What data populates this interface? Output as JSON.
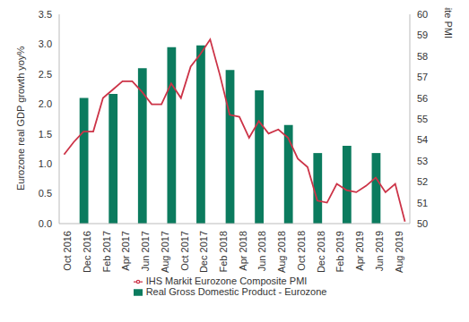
{
  "chart_data": {
    "type": "bar",
    "grid": false,
    "legend": "bottom",
    "y_label": "Eurozone real GDP growth yoy%",
    "y2_label": "IHS Markit Eurozone Composite PMI",
    "categories": [
      "Oct 2016",
      null,
      "Dec 2016",
      null,
      "Feb 2017",
      null,
      "Apr 2017",
      null,
      "Jun 2017",
      null,
      "Aug 2017",
      null,
      "Oct 2017",
      null,
      "Dec 2017",
      null,
      "Feb 2018",
      null,
      "Apr 2018",
      null,
      "Jun 2018",
      null,
      "Aug 2018",
      null,
      "Oct 2018",
      null,
      "Dec 2018",
      null,
      "Feb 2019",
      null,
      "Apr 2019",
      null,
      "Jun 2019",
      null,
      "Aug 2019",
      null
    ],
    "ylim": [
      0,
      3.5
    ],
    "yticks": [
      {
        "value": 0,
        "label": "0.0"
      },
      0.5,
      {
        "value": 1,
        "label": "1.0"
      },
      1.5,
      {
        "value": 2,
        "label": "2.0"
      },
      2.5,
      {
        "value": 3,
        "label": "3.0"
      },
      3.5
    ],
    "y2lim": [
      50,
      60
    ],
    "y2ticks": [
      50,
      51,
      52,
      53,
      54,
      55,
      56,
      57,
      58,
      59,
      60
    ],
    "series": [
      {
        "name": "Real Gross Domestic Product - Eurozone",
        "type": "bar",
        "color": "#0b7b5e",
        "values": [
          null,
          null,
          2.1,
          null,
          null,
          2.17,
          null,
          null,
          2.6,
          null,
          null,
          2.95,
          null,
          null,
          2.98,
          null,
          null,
          2.57,
          null,
          null,
          2.23,
          null,
          null,
          1.65,
          null,
          null,
          1.18,
          null,
          null,
          1.3,
          null,
          null,
          1.18,
          null,
          null,
          null
        ]
      },
      {
        "name": "IHS Markit Eurozone Composite PMI",
        "type": "line",
        "axis": "y2",
        "color": "#cc3347",
        "values": [
          53.3,
          53.9,
          54.4,
          54.4,
          56.0,
          56.4,
          56.8,
          56.8,
          56.3,
          55.7,
          55.7,
          56.7,
          56.0,
          57.5,
          58.1,
          58.8,
          57.1,
          55.2,
          55.1,
          54.1,
          54.9,
          54.3,
          54.5,
          54.1,
          53.1,
          52.7,
          51.1,
          51.0,
          51.9,
          51.6,
          51.5,
          51.8,
          52.2,
          51.5,
          51.9,
          50.1
        ]
      }
    ]
  }
}
